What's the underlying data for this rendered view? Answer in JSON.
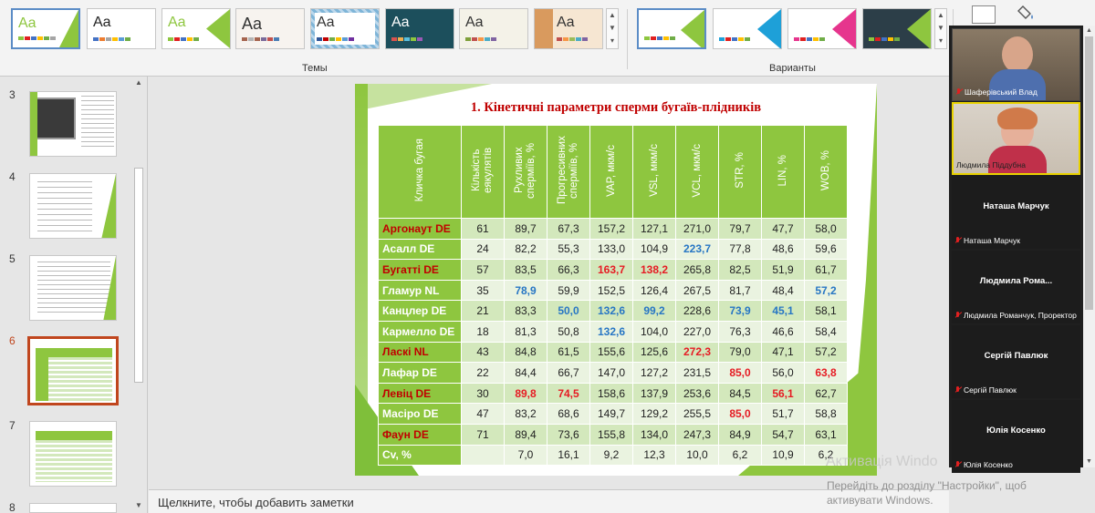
{
  "ribbon": {
    "themes_label": "Темы",
    "variants_label": "Варианты",
    "theme_sample": "Aa"
  },
  "slide_panel": {
    "slides": [
      {
        "number": "3"
      },
      {
        "number": "4"
      },
      {
        "number": "5"
      },
      {
        "number": "6"
      },
      {
        "number": "7"
      },
      {
        "number": "8"
      }
    ]
  },
  "notes": {
    "placeholder": "Щелкните, чтобы добавить заметки"
  },
  "slide": {
    "title": "1. Кінетичні параметри сперми бугаїв-плідників",
    "headers": [
      "Кличка бугая",
      "Кількість еякулятів",
      "Рухливих сперміїв, %",
      "Прогресивних сперміїв, %",
      "VAP, мкм/с",
      "VSL, мкм/с",
      "VCL, мкм/с",
      "STR, %",
      "LIN, %",
      "WOB, %"
    ],
    "rows": [
      {
        "name": "Аргонаут DE",
        "values": [
          "61",
          "89,7",
          "67,3",
          "157,2",
          "127,1",
          "271,0",
          "79,7",
          "47,7",
          "58,0"
        ]
      },
      {
        "name": "Асалл DE",
        "values": [
          "24",
          "82,2",
          "55,3",
          "133,0",
          "104,9",
          "223,7",
          "77,8",
          "48,6",
          "59,6"
        ]
      },
      {
        "name": "Бугатті DE",
        "values": [
          "57",
          "83,5",
          "66,3",
          "163,7",
          "138,2",
          "265,8",
          "82,5",
          "51,9",
          "61,7"
        ]
      },
      {
        "name": "Гламур NL",
        "values": [
          "35",
          "78,9",
          "59,9",
          "152,5",
          "126,4",
          "267,5",
          "81,7",
          "48,4",
          "57,2"
        ]
      },
      {
        "name": "Канцлер DE",
        "values": [
          "21",
          "83,3",
          "50,0",
          "132,6",
          "99,2",
          "228,6",
          "73,9",
          "45,1",
          "58,1"
        ]
      },
      {
        "name": "Кармелло DE",
        "values": [
          "18",
          "81,3",
          "50,8",
          "132,6",
          "104,0",
          "227,0",
          "76,3",
          "46,6",
          "58,4"
        ]
      },
      {
        "name": "Ласкі NL",
        "values": [
          "43",
          "84,8",
          "61,5",
          "155,6",
          "125,6",
          "272,3",
          "79,0",
          "47,1",
          "57,2"
        ]
      },
      {
        "name": "Лафар DE",
        "values": [
          "22",
          "84,4",
          "66,7",
          "147,0",
          "127,2",
          "231,5",
          "85,0",
          "56,0",
          "63,8"
        ]
      },
      {
        "name": "Левіц DE",
        "values": [
          "30",
          "89,8",
          "74,5",
          "158,6",
          "137,9",
          "253,6",
          "84,5",
          "56,1",
          "62,7"
        ]
      },
      {
        "name": "Масіро DE",
        "values": [
          "47",
          "83,2",
          "68,6",
          "149,7",
          "129,2",
          "255,5",
          "85,0",
          "51,7",
          "58,8"
        ]
      },
      {
        "name": "Фаун DE",
        "values": [
          "71",
          "89,4",
          "73,6",
          "155,8",
          "134,0",
          "247,3",
          "84,9",
          "54,7",
          "63,1"
        ]
      },
      {
        "name": "Cv, %",
        "values": [
          "",
          "7,0",
          "16,1",
          "9,2",
          "12,3",
          "10,0",
          "6,2",
          "10,9",
          "6,2"
        ]
      }
    ]
  },
  "colors": {
    "table_green": "#8ec63f",
    "highlight_red": "#e61b23",
    "highlight_blue": "#2776c4",
    "title_red": "#c00000"
  },
  "participants": [
    {
      "name": "Шаферівський Влад",
      "display": "Шаферівський Влад",
      "has_video": true
    },
    {
      "name": "Людмила Піддубна",
      "display": "Людмила Піддубна",
      "has_video": true
    },
    {
      "name": "Наташа Марчук",
      "display": "Наташа Марчук",
      "has_video": false
    },
    {
      "name": "Людмила  Рома...",
      "display": "Людмила Романчук, Проректор",
      "has_video": false
    },
    {
      "name": "Сергій Павлюк",
      "display": "Сергій Павлюк",
      "has_video": false
    },
    {
      "name": "Юлія Косенко",
      "display": "Юлія Косенко",
      "has_video": false
    }
  ],
  "watermark": {
    "line1": "Активація Windo",
    "line2": "Перейдіть до розділу \"Настройки\", щоб",
    "line3": "активувати Windows."
  }
}
